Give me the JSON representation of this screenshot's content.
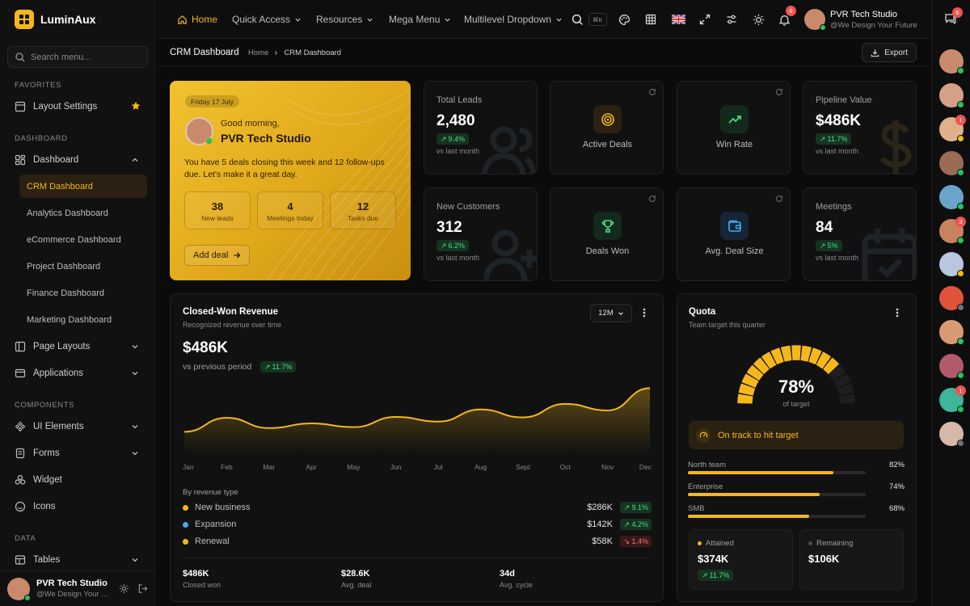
{
  "brand": {
    "name": "LuminAux"
  },
  "sidebar": {
    "search_placeholder": "Search menu...",
    "sections": {
      "favorites": "FAVORITES",
      "dashboard": "DASHBOARD",
      "components": "COMPONENTS",
      "data": "DATA"
    },
    "favorites": [
      {
        "label": "Layout Settings"
      }
    ],
    "dashboard_item": {
      "label": "Dashboard"
    },
    "dashboard_children": [
      "CRM Dashboard",
      "Analytics Dashboard",
      "eCommerce Dashboard",
      "Project Dashboard",
      "Finance Dashboard",
      "Marketing Dashboard"
    ],
    "page_layouts": "Page Layouts",
    "applications": "Applications",
    "components": [
      "UI Elements",
      "Forms",
      "Widget",
      "Icons"
    ],
    "tables": "Tables",
    "user": {
      "name": "PVR Tech Studio",
      "subtitle": "@We Design Your ..."
    }
  },
  "topbar": {
    "nav": [
      "Home",
      "Quick Access",
      "Resources",
      "Mega Menu",
      "Multilevel Dropdown"
    ],
    "shortcut": "⌘K",
    "notifications_count": "6",
    "user": {
      "name": "PVR Tech Studio",
      "subtitle": "@We Design Your Future"
    },
    "messages_count": "6"
  },
  "breadcrumb": {
    "title": "CRM Dashboard",
    "home": "Home",
    "current": "CRM Dashboard",
    "export": "Export"
  },
  "welcome": {
    "date": "Friday 17 July",
    "greeting": "Good morning,",
    "name": "PVR Tech Studio",
    "message": "You have 5 deals closing this week and 12 follow-ups due. Let's make it a great day.",
    "stats": [
      {
        "value": "38",
        "label": "New leads"
      },
      {
        "value": "4",
        "label": "Meetings today"
      },
      {
        "value": "12",
        "label": "Tasks due"
      }
    ],
    "cta": "Add deal"
  },
  "kpis": {
    "total_leads": {
      "label": "Total Leads",
      "value": "2,480",
      "change": "9.4%",
      "sub": "vs last month"
    },
    "pipeline_value": {
      "label": "Pipeline Value",
      "value": "$486K",
      "change": "11.7%",
      "sub": "vs last month"
    },
    "new_customers": {
      "label": "New Customers",
      "value": "312",
      "change": "6.2%",
      "sub": "vs last month"
    },
    "meetings": {
      "label": "Meetings",
      "value": "84",
      "change": "5%",
      "sub": "vs last month"
    }
  },
  "tiles": {
    "active_deals": "Active Deals",
    "win_rate": "Win Rate",
    "deals_won": "Deals Won",
    "avg_deal_size": "Avg. Deal Size"
  },
  "revenue": {
    "title": "Closed-Won Revenue",
    "subtitle": "Recognized revenue over time",
    "range": "12M",
    "value": "$486K",
    "compare": "vs previous period",
    "change": "11.7%",
    "breakdown_title": "By revenue type",
    "breakdown": [
      {
        "name": "New business",
        "value": "$286K",
        "change": "9.1%",
        "color": "#f5b81c",
        "trend": "up"
      },
      {
        "name": "Expansion",
        "value": "$142K",
        "change": "4.2%",
        "color": "#4aa8ea",
        "trend": "up"
      },
      {
        "name": "Renewal",
        "value": "$58K",
        "change": "1.4%",
        "color": "#f5b81c",
        "trend": "down"
      }
    ],
    "footer": [
      {
        "value": "$486K",
        "label": "Closed won"
      },
      {
        "value": "$28.6K",
        "label": "Avg. deal"
      },
      {
        "value": "34d",
        "label": "Avg. cycle"
      }
    ]
  },
  "chart_data": {
    "type": "area",
    "categories": [
      "Jan",
      "Feb",
      "Mar",
      "Apr",
      "May",
      "Jun",
      "Jul",
      "Aug",
      "Sept",
      "Oct",
      "Nov",
      "Dec"
    ],
    "series": [
      {
        "values": [
          0.48,
          0.78,
          0.56,
          0.66,
          0.58,
          0.8,
          0.7,
          0.96,
          0.79,
          1.08,
          0.94,
          1.42
        ]
      }
    ],
    "ylim": [
      0,
      1.6
    ],
    "grid": false,
    "colors": [
      "#f5b81c"
    ]
  },
  "quota": {
    "title": "Quota",
    "subtitle": "Team target this quarter",
    "percent": 78,
    "percent_label": "78%",
    "percent_sub": "of target",
    "status": "On track to hit target",
    "teams": [
      {
        "name": "North team",
        "pct": "82%",
        "fill": 82
      },
      {
        "name": "Enterprise",
        "pct": "74%",
        "fill": 74
      },
      {
        "name": "SMB",
        "pct": "68%",
        "fill": 68
      }
    ],
    "attained": {
      "label": "Attained",
      "value": "$374K",
      "change": "11.7%"
    },
    "remaining": {
      "label": "Remaining",
      "value": "$106K"
    }
  },
  "right_avatars": [
    {
      "color": "#c98a6b",
      "status": "#22c55e"
    },
    {
      "color": "#d4a088",
      "status": "#22c55e"
    },
    {
      "color": "#e0b08a",
      "status": "#f5b81c",
      "badge": "1"
    },
    {
      "color": "#9c6b55",
      "status": "#22c55e"
    },
    {
      "color": "#6aa4c8",
      "status": "#22c55e"
    },
    {
      "color": "#c8835e",
      "status": "#22c55e",
      "badge": "3"
    },
    {
      "color": "#b8c6e0",
      "status": "#f5b81c"
    },
    {
      "color": "#e0533b",
      "status": "#6b7280"
    },
    {
      "color": "#d99a72",
      "status": "#22c55e"
    },
    {
      "color": "#b05a6a",
      "status": "#22c55e"
    },
    {
      "color": "#3fb59a",
      "status": "#22c55e",
      "badge": "1"
    },
    {
      "color": "#d6b8a8",
      "status": "#6b7280"
    }
  ],
  "colors": {
    "accent": "#f5b81c",
    "bg": "#0b0b0b",
    "card": "#111111",
    "positive": "#4ade80",
    "negative": "#f87171"
  }
}
